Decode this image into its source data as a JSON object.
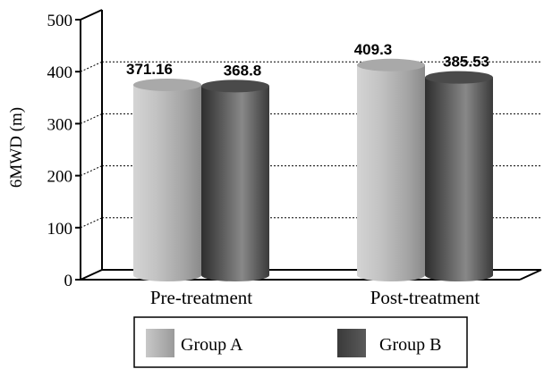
{
  "chart_data": {
    "type": "bar",
    "style": "3d-cylinder",
    "categories": [
      "Pre-treatment",
      "Post-treatment"
    ],
    "series": [
      {
        "name": "Group A",
        "values": [
          371.16,
          409.3
        ],
        "value_labels": [
          "371.16",
          "409.3"
        ],
        "color": "#a6a6a6"
      },
      {
        "name": "Group B",
        "values": [
          368.8,
          385.53
        ],
        "value_labels": [
          "368.8",
          "385.53"
        ],
        "color": "#4a4a4a"
      }
    ],
    "ylabel": "6MWD (m)",
    "ylim": [
      0,
      500
    ],
    "yticks": [
      0,
      100,
      200,
      300,
      400,
      500
    ],
    "ytick_labels": [
      "0",
      "100",
      "200",
      "300",
      "400",
      "500"
    ],
    "grid": true,
    "legend_position": "bottom"
  }
}
